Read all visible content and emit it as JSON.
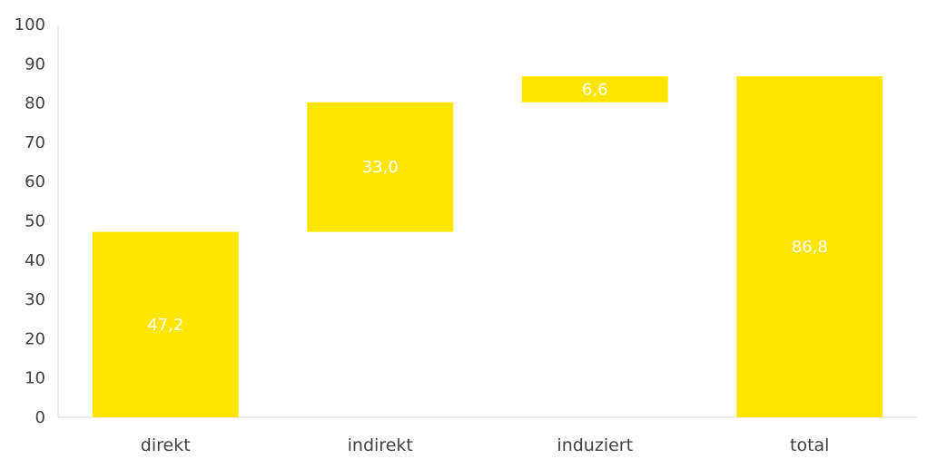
{
  "chart_data": {
    "type": "bar",
    "subtype": "waterfall",
    "title": "",
    "xlabel": "",
    "ylabel": "",
    "categories": [
      "direkt",
      "indirekt",
      "induziert",
      "total"
    ],
    "values": [
      47.2,
      33.0,
      6.6,
      86.8
    ],
    "bases": [
      0,
      47.2,
      80.2,
      0
    ],
    "value_labels": [
      "47,2",
      "33,0",
      "6,6",
      "86,8"
    ],
    "ylim": [
      0,
      100
    ],
    "yticks": [
      0,
      10,
      20,
      30,
      40,
      50,
      60,
      70,
      80,
      90,
      100
    ],
    "ytick_labels": [
      "0",
      "10",
      "20",
      "30",
      "40",
      "50",
      "60",
      "70",
      "80",
      "90",
      "100"
    ],
    "grid": false,
    "legend": "none",
    "colors": {
      "bar": "#FFE600",
      "axis": "#D9D9D9",
      "tick_text": "#404040",
      "bar_label_text": "#FFFFFF"
    }
  }
}
